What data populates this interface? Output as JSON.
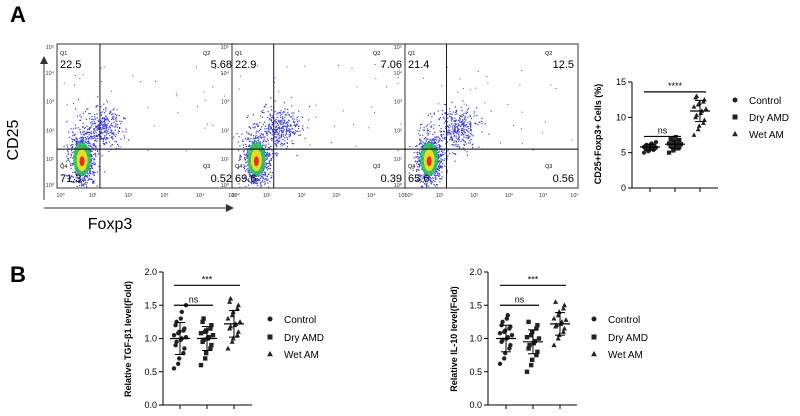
{
  "panels": {
    "a": "A",
    "b": "B"
  },
  "flow": {
    "ylabel": "CD25",
    "xlabel": "Foxp3",
    "y_ticks": [
      "10⁵",
      "10⁴",
      "10³",
      "10²",
      "10¹",
      "10⁰"
    ],
    "x_ticks": [
      "10⁰",
      "10¹",
      "10²",
      "10³",
      "10⁴",
      "10⁵"
    ],
    "quad_labels": [
      "Q1",
      "Q2",
      "Q3",
      "Q4"
    ],
    "plots": [
      {
        "q1": "22.5",
        "q2": "5.68",
        "q3": "0.52",
        "q4": "71.3"
      },
      {
        "q1": "22.9",
        "q2": "7.06",
        "q3": "0.39",
        "q4": "69.6"
      },
      {
        "q1": "21.4",
        "q2": "12.5",
        "q3": "0.56",
        "q4": "65.6"
      }
    ],
    "colors": {
      "dots": "#3a3ae0",
      "hot_mid": "#28c850",
      "hot_core": "#f0e020",
      "hot_peak": "#e83020"
    }
  },
  "chart_data": [
    {
      "type": "scatter",
      "title": "",
      "ylabel": "CD25+Foxp3+ Cells (%)",
      "ylim": [
        0,
        15
      ],
      "yticks": [
        "0",
        "5",
        "10",
        "15"
      ],
      "categories": [
        "Control",
        "Dry AMD",
        "Wet AM"
      ],
      "markers": [
        "circle",
        "square",
        "triangle"
      ],
      "series": [
        {
          "name": "Control",
          "values": [
            5.0,
            5.2,
            5.3,
            5.4,
            5.5,
            5.5,
            5.6,
            5.6,
            5.7,
            5.7,
            5.8,
            5.8,
            5.9,
            5.9,
            6.0,
            6.0,
            6.1,
            6.2,
            6.3,
            6.5
          ],
          "mean": 5.8,
          "sd": 0.4
        },
        {
          "name": "Dry AMD",
          "values": [
            5.0,
            5.3,
            5.5,
            5.6,
            5.8,
            5.9,
            6.0,
            6.0,
            6.1,
            6.2,
            6.3,
            6.4,
            6.5,
            6.6,
            6.8,
            6.9,
            7.0,
            7.2
          ],
          "mean": 6.2,
          "sd": 0.6
        },
        {
          "name": "Wet AM",
          "values": [
            7.5,
            8.3,
            8.8,
            9.2,
            9.6,
            10.0,
            10.3,
            10.6,
            10.9,
            11.2,
            11.5,
            11.8,
            12.0,
            12.2,
            12.5,
            12.8,
            13.0
          ],
          "mean": 10.9,
          "sd": 1.5
        }
      ],
      "comparisons": [
        {
          "from": "Control",
          "to": "Dry AMD",
          "y": 7.3,
          "label": "ns"
        },
        {
          "from": "Control",
          "to": "Wet AM",
          "y": 13.6,
          "label": "****"
        }
      ]
    },
    {
      "type": "scatter",
      "title": "",
      "ylabel": "Relative TGF-β1 level(Fold)",
      "ylim": [
        0,
        2.0
      ],
      "yticks": [
        "0.0",
        "0.5",
        "1.0",
        "1.5",
        "2.0"
      ],
      "categories": [
        "Control",
        "Dry AMD",
        "Wet AM"
      ],
      "markers": [
        "circle",
        "square",
        "triangle"
      ],
      "series": [
        {
          "name": "Control",
          "values": [
            0.55,
            0.62,
            0.7,
            0.78,
            0.85,
            0.9,
            0.95,
            0.98,
            1.0,
            1.02,
            1.05,
            1.08,
            1.1,
            1.12,
            1.15,
            1.2,
            1.25,
            1.3,
            1.4,
            1.5
          ],
          "mean": 1.0,
          "sd": 0.24
        },
        {
          "name": "Dry AMD",
          "values": [
            0.6,
            0.7,
            0.78,
            0.85,
            0.9,
            0.95,
            0.98,
            1.0,
            1.02,
            1.05,
            1.08,
            1.1,
            1.12,
            1.15,
            1.2,
            1.25,
            1.3
          ],
          "mean": 1.0,
          "sd": 0.18
        },
        {
          "name": "Wet AM",
          "values": [
            0.85,
            0.95,
            1.0,
            1.05,
            1.1,
            1.15,
            1.18,
            1.2,
            1.22,
            1.25,
            1.3,
            1.35,
            1.4,
            1.45,
            1.5,
            1.55,
            1.6
          ],
          "mean": 1.22,
          "sd": 0.2
        }
      ],
      "comparisons": [
        {
          "from": "Control",
          "to": "Dry AMD",
          "y": 1.5,
          "label": "ns"
        },
        {
          "from": "Control",
          "to": "Wet AM",
          "y": 1.8,
          "label": "***"
        }
      ]
    },
    {
      "type": "scatter",
      "title": "",
      "ylabel": "Relative IL-10 level(Fold)",
      "ylim": [
        0,
        2.0
      ],
      "yticks": [
        "0.0",
        "0.5",
        "1.0",
        "1.5",
        "2.0"
      ],
      "categories": [
        "Control",
        "Dry AMD",
        "Wet AM"
      ],
      "markers": [
        "circle",
        "square",
        "triangle"
      ],
      "series": [
        {
          "name": "Control",
          "values": [
            0.62,
            0.7,
            0.78,
            0.85,
            0.9,
            0.95,
            0.98,
            1.0,
            1.02,
            1.05,
            1.08,
            1.1,
            1.12,
            1.15,
            1.18,
            1.2,
            1.25,
            1.3,
            1.35
          ],
          "mean": 1.0,
          "sd": 0.2
        },
        {
          "name": "Dry AMD",
          "values": [
            0.5,
            0.6,
            0.68,
            0.75,
            0.8,
            0.85,
            0.9,
            0.93,
            0.96,
            1.0,
            1.02,
            1.05,
            1.1,
            1.15,
            1.2,
            1.25
          ],
          "mean": 0.95,
          "sd": 0.18
        },
        {
          "name": "Wet AM",
          "values": [
            0.9,
            1.0,
            1.05,
            1.1,
            1.15,
            1.18,
            1.2,
            1.22,
            1.25,
            1.28,
            1.3,
            1.35,
            1.4,
            1.45,
            1.5,
            1.55
          ],
          "mean": 1.22,
          "sd": 0.17
        }
      ],
      "comparisons": [
        {
          "from": "Control",
          "to": "Dry AMD",
          "y": 1.5,
          "label": "ns"
        },
        {
          "from": "Control",
          "to": "Wet AM",
          "y": 1.8,
          "label": "***"
        }
      ]
    }
  ],
  "legend": {
    "items": [
      {
        "label": "Control",
        "marker": "circle"
      },
      {
        "label": "Dry AMD",
        "marker": "square"
      },
      {
        "label": "Wet AM",
        "marker": "triangle"
      }
    ]
  }
}
